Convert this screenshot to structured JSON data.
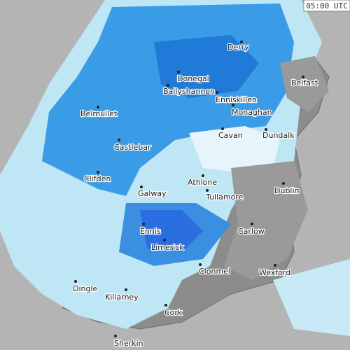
{
  "timestamp": "05:00 UTC",
  "places": [
    "Derry",
    "Donegal",
    "Ballyshannon",
    "Enniskillen",
    "Belfast",
    "Monaghan",
    "Belmullet",
    "Cavan",
    "Dundalk",
    "Castlebar",
    "Clifden",
    "Athlone",
    "Tullamore",
    "Dublin",
    "Galway",
    "Ennis",
    "Carlow",
    "Limerick",
    "Clonmel",
    "Wexford",
    "Dingle",
    "Killarney",
    "Cork",
    "Sherkin"
  ]
}
